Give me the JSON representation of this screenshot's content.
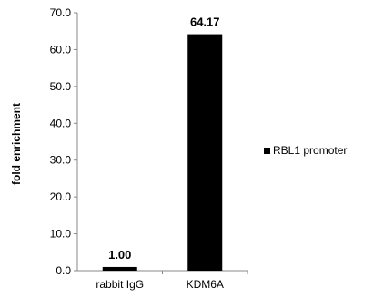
{
  "chart_data": {
    "type": "bar",
    "categories": [
      "rabbit IgG",
      "KDM6A"
    ],
    "series": [
      {
        "name": "RBL1 promoter",
        "values": [
          1.0,
          64.17
        ]
      }
    ],
    "data_labels": [
      "1.00",
      "64.17"
    ],
    "title": "",
    "xlabel": "",
    "ylabel": "fold enrichment",
    "ylim": [
      0,
      70
    ],
    "yticks": [
      "0.0",
      "10.0",
      "20.0",
      "30.0",
      "40.0",
      "50.0",
      "60.0",
      "70.0"
    ],
    "grid": false,
    "legend_position": "right",
    "bar_color": "#000000"
  }
}
